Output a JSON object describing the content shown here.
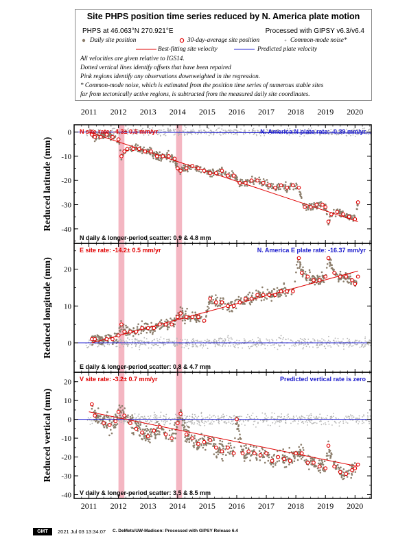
{
  "header": {
    "title": "Site PHPS position time series reduced by N. America plate motion",
    "site_location": "PHPS at 46.063°N 270.921°E",
    "processing": "Processed with GIPSY v6.3/v6.4",
    "legend_daily": "Daily site position",
    "legend_avg": "30-day-average site position",
    "legend_cm": "Common-mode noise*",
    "legend_fit": "Best-fitting site velocity",
    "legend_pred": "Predicted plate velocity",
    "note1": "All velocities are given relative to IGS14.",
    "note2": "Dotted vertical lines identify offsets that have been repaired",
    "note3": "Pink regions identify any observations downweighted in the regression.",
    "note4": "* Common-mode noise, which is estimated from the position time series of numerous stable sites",
    "note5": "far from tectonically active regions, is subtracted from the measured daily site coordinates."
  },
  "colors": {
    "daily": "#8b7d6b",
    "common_mode": "#b5b5b5",
    "average": "#e00000",
    "fit": "#e00000",
    "predicted": "#2020d0",
    "pink": "#f4b6c2",
    "rate_text_red": "#e00000",
    "rate_text_blue": "#1a1acc"
  },
  "footer": {
    "logo": "GMT",
    "timestamp": "2021 Jul 03 13:34:07",
    "credit": "C. DeMets/UW-Madison: Processed with GIPSY Release 6.4"
  },
  "chart_data": [
    {
      "type": "scatter",
      "component": "N",
      "ylabel": "Reduced latitude (mm)",
      "site_rate": "N site rate:  -4.3± 0.5 mm/yr",
      "plate_rate": "N. America N plate rate: -0.39 mm/yr",
      "scatter": "N daily & longer-period scatter:   0.9 &   4.8 mm",
      "xlim": [
        2010.5,
        2020.55
      ],
      "ylim": [
        -46,
        3
      ],
      "yticks": [
        0,
        -10,
        -20,
        -30,
        -40
      ],
      "xticks": [
        2011,
        2012,
        2013,
        2014,
        2015,
        2016,
        2017,
        2018,
        2019,
        2020
      ],
      "fit_line": {
        "x": [
          2011.0,
          2020.1
        ],
        "y": [
          0,
          -37
        ]
      },
      "predicted_line": {
        "x": [
          2010.5,
          2020.55
        ],
        "y": [
          0,
          -0.4
        ]
      },
      "pink_regions": [
        [
          2012.0,
          2012.2
        ],
        [
          2013.95,
          2014.15
        ]
      ],
      "average_points": {
        "x": [
          2011.1,
          2011.2,
          2011.4,
          2011.6,
          2011.8,
          2012.0,
          2012.1,
          2012.2,
          2012.3,
          2012.5,
          2012.7,
          2012.9,
          2013.1,
          2013.3,
          2013.5,
          2013.7,
          2013.9,
          2014.0,
          2014.1,
          2014.3,
          2014.5,
          2014.7,
          2014.9,
          2015.1,
          2015.3,
          2015.5,
          2015.7,
          2015.9,
          2016.1,
          2016.3,
          2016.5,
          2016.7,
          2016.9,
          2017.1,
          2017.3,
          2017.5,
          2017.7,
          2017.9,
          2018.1,
          2018.3,
          2018.5,
          2018.7,
          2018.9,
          2019.0,
          2019.1,
          2019.2,
          2019.4,
          2019.6,
          2019.8,
          2020.0,
          2020.1
        ],
        "y": [
          -1,
          -2,
          -2,
          -1,
          -2,
          -3,
          -10,
          -8,
          -7,
          -7,
          -7,
          -8,
          -8,
          -10,
          -10,
          -10,
          -11,
          -15,
          -16,
          -15,
          -14,
          -15,
          -16,
          -17,
          -17,
          -16,
          -18,
          -18,
          -21,
          -21,
          -20,
          -20,
          -21,
          -22,
          -23,
          -22,
          -23,
          -22,
          -23,
          -31,
          -31,
          -30,
          -30,
          -31,
          -37,
          -34,
          -33,
          -34,
          -35,
          -36,
          -29
        ]
      }
    },
    {
      "type": "scatter",
      "component": "E",
      "ylabel": "Reduced longitude (mm)",
      "site_rate": "E site rate:  -14.2± 0.5 mm/yr",
      "plate_rate": "N. America E plate rate: -16.37 mm/yr",
      "scatter": "E daily & longer-period scatter:   0.8 &   4.7 mm",
      "xlim": [
        2010.5,
        2020.55
      ],
      "ylim": [
        -8,
        27
      ],
      "yticks": [
        0,
        10,
        20
      ],
      "xticks": [
        2011,
        2012,
        2013,
        2014,
        2015,
        2016,
        2017,
        2018,
        2019,
        2020
      ],
      "fit_line": {
        "x": [
          2011.1,
          2020.1
        ],
        "y": [
          0,
          19.5
        ]
      },
      "predicted_line": {
        "x": [
          2010.5,
          2020.55
        ],
        "y": [
          0,
          0
        ]
      },
      "pink_regions": [
        [
          2012.0,
          2012.2
        ],
        [
          2013.95,
          2014.15
        ]
      ],
      "average_points": {
        "x": [
          2011.1,
          2011.2,
          2011.6,
          2011.8,
          2012.0,
          2012.1,
          2012.2,
          2012.4,
          2012.6,
          2012.8,
          2013.0,
          2013.2,
          2013.4,
          2013.6,
          2013.8,
          2014.0,
          2014.1,
          2014.3,
          2014.5,
          2014.7,
          2014.9,
          2015.1,
          2015.3,
          2015.5,
          2015.7,
          2015.9,
          2016.1,
          2016.3,
          2016.5,
          2016.7,
          2016.9,
          2017.1,
          2017.3,
          2017.5,
          2017.7,
          2017.9,
          2018.1,
          2018.2,
          2018.4,
          2018.6,
          2018.8,
          2019.0,
          2019.1,
          2019.3,
          2019.5,
          2019.7,
          2019.9,
          2020.0,
          2020.1
        ],
        "y": [
          1,
          1,
          1,
          1,
          2,
          5,
          3,
          3,
          3,
          4,
          4,
          4,
          5,
          5,
          5,
          7,
          8,
          7,
          7,
          7,
          6,
          12,
          11,
          11,
          10,
          10,
          11,
          12,
          12,
          13,
          13,
          13,
          13,
          14,
          14,
          14,
          23,
          19,
          18,
          17,
          17,
          18,
          23,
          19,
          18,
          18,
          17,
          16,
          18
        ]
      }
    },
    {
      "type": "scatter",
      "component": "V",
      "ylabel": "Reduced vertical (mm)",
      "site_rate": "V site rate:  -3.2± 0.7 mm/yr",
      "plate_rate": "Predicted vertical rate is zero",
      "scatter": "V daily & longer-period scatter:   3.5 &   8.5 mm",
      "xlim": [
        2010.5,
        2020.55
      ],
      "ylim": [
        -42,
        25
      ],
      "yticks": [
        20,
        10,
        0,
        -10,
        -20,
        -30,
        -40
      ],
      "xticks": [
        2011,
        2012,
        2013,
        2014,
        2015,
        2016,
        2017,
        2018,
        2019,
        2020
      ],
      "fit_line": {
        "x": [
          2011.0,
          2020.1
        ],
        "y": [
          4,
          -25
        ]
      },
      "predicted_line": {
        "x": [
          2010.5,
          2020.55
        ],
        "y": [
          0,
          0
        ]
      },
      "pink_regions": [
        [
          2012.0,
          2012.2
        ],
        [
          2013.95,
          2014.15
        ]
      ],
      "average_points": {
        "x": [
          2011.1,
          2011.2,
          2011.5,
          2011.7,
          2011.9,
          2012.0,
          2012.2,
          2012.4,
          2012.6,
          2012.8,
          2013.0,
          2013.2,
          2013.4,
          2013.6,
          2013.8,
          2014.0,
          2014.1,
          2014.3,
          2014.5,
          2014.7,
          2014.9,
          2015.1,
          2015.3,
          2015.5,
          2015.7,
          2015.9,
          2016.0,
          2016.2,
          2016.4,
          2016.6,
          2016.8,
          2017.0,
          2017.2,
          2017.4,
          2017.6,
          2017.8,
          2018.0,
          2018.2,
          2018.4,
          2018.6,
          2018.8,
          2019.0,
          2019.1,
          2019.3,
          2019.5,
          2019.7,
          2019.9,
          2020.0,
          2020.1
        ],
        "y": [
          8,
          2,
          -2,
          -3,
          -1,
          4,
          2,
          -2,
          -5,
          -7,
          -9,
          -6,
          -4,
          -8,
          -10,
          -2,
          3,
          -8,
          -10,
          -13,
          -12,
          -11,
          -15,
          -17,
          -15,
          -18,
          0,
          -18,
          -17,
          -18,
          -19,
          -18,
          -22,
          -20,
          -21,
          -22,
          -18,
          -18,
          -23,
          -23,
          -25,
          -26,
          -14,
          -25,
          -28,
          -29,
          -27,
          -26,
          -24
        ]
      }
    }
  ]
}
